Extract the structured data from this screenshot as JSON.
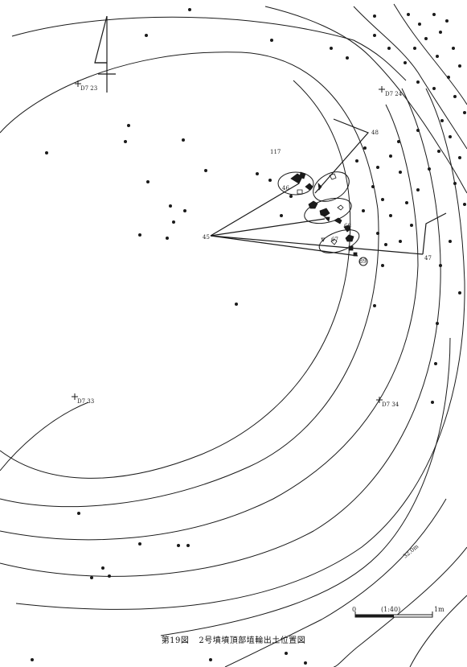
{
  "figure": {
    "number": "第19図",
    "title": "2号墳墳頂部埴輪出土位置図"
  },
  "grid_points": [
    {
      "label": "D7 23"
    },
    {
      "label": "D7 24"
    },
    {
      "label": "D7 33"
    },
    {
      "label": "D7 34"
    }
  ],
  "find_labels": [
    "48",
    "117",
    "46",
    "45",
    "68",
    "67",
    "47",
    "89"
  ],
  "contour_label": "32.0m",
  "scale_bar": {
    "zero": "0",
    "ratio": "(1:40)",
    "end": "1m"
  },
  "colors": {
    "line": "#1a1a1a",
    "paper": "#ffffff"
  },
  "north_arrow": "north-arrow-icon"
}
